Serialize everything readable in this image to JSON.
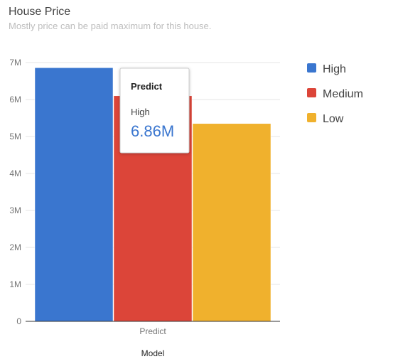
{
  "chart_data": {
    "type": "bar",
    "title": "House Price",
    "subtitle": "Mostly price can be paid maximum for this house.",
    "xlabel": "Model",
    "ylabel": "",
    "categories": [
      "Predict"
    ],
    "series": [
      {
        "name": "High",
        "values": [
          6860000
        ],
        "color": "#3a76cf"
      },
      {
        "name": "Medium",
        "values": [
          6100000
        ],
        "color": "#dc4539"
      },
      {
        "name": "Low",
        "values": [
          5350000
        ],
        "color": "#f0b12d"
      }
    ],
    "ylim": [
      0,
      7000000
    ],
    "y_ticks": [
      {
        "value": 0,
        "label": "0"
      },
      {
        "value": 1000000,
        "label": "1M"
      },
      {
        "value": 2000000,
        "label": "2M"
      },
      {
        "value": 3000000,
        "label": "3M"
      },
      {
        "value": 4000000,
        "label": "4M"
      },
      {
        "value": 5000000,
        "label": "5M"
      },
      {
        "value": 6000000,
        "label": "6M"
      },
      {
        "value": 7000000,
        "label": "7M"
      }
    ],
    "grid": true,
    "legend_position": "right",
    "tooltip": {
      "title": "Predict",
      "series": "High",
      "value": "6.86M"
    }
  }
}
